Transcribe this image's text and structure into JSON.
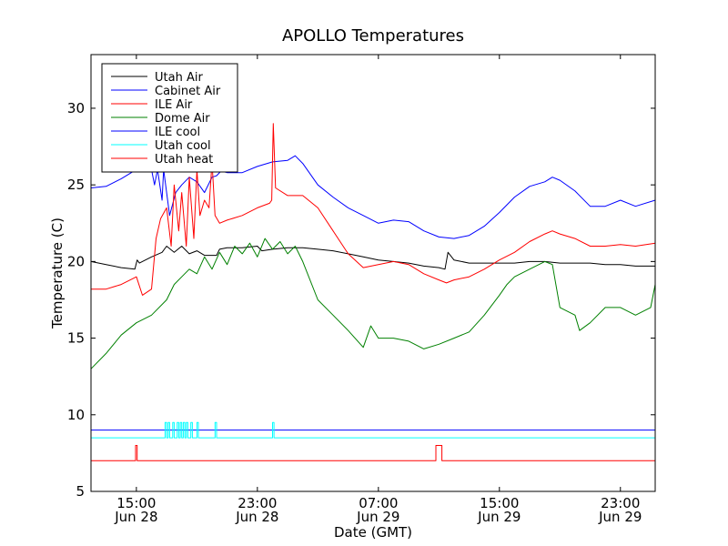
{
  "chart_data": {
    "type": "line",
    "title": "APOLLO Temperatures",
    "xlabel": "Date (GMT)",
    "ylabel": "Temperature (C)",
    "ylim": [
      5,
      33.5
    ],
    "xlim": [
      12,
      49.3
    ],
    "grid": false,
    "legend_position": "top-left",
    "x_unit": "hours since 00:00 Jun 28 GMT",
    "y_ticks": [
      5,
      10,
      15,
      20,
      25,
      30
    ],
    "x_ticks": [
      {
        "x": 15,
        "line1": "15:00",
        "line2": "Jun 28"
      },
      {
        "x": 23,
        "line1": "23:00",
        "line2": "Jun 28"
      },
      {
        "x": 31,
        "line1": "07:00",
        "line2": "Jun 29"
      },
      {
        "x": 39,
        "line1": "15:00",
        "line2": "Jun 29"
      },
      {
        "x": 47,
        "line1": "23:00",
        "line2": "Jun 29"
      }
    ],
    "series": [
      {
        "name": "Utah Air",
        "color": "#000000",
        "points": [
          [
            12,
            20.0
          ],
          [
            13,
            19.8
          ],
          [
            14,
            19.6
          ],
          [
            14.9,
            19.5
          ],
          [
            15.05,
            20.1
          ],
          [
            15.2,
            19.9
          ],
          [
            16,
            20.3
          ],
          [
            16.7,
            20.6
          ],
          [
            17,
            21.0
          ],
          [
            17.5,
            20.6
          ],
          [
            18,
            21.0
          ],
          [
            18.5,
            20.5
          ],
          [
            19,
            20.7
          ],
          [
            19.5,
            20.4
          ],
          [
            20.3,
            20.4
          ],
          [
            20.5,
            20.8
          ],
          [
            21,
            20.9
          ],
          [
            22,
            20.9
          ],
          [
            23,
            21.0
          ],
          [
            23.3,
            20.7
          ],
          [
            24,
            20.8
          ],
          [
            25,
            20.9
          ],
          [
            26,
            20.9
          ],
          [
            27,
            20.8
          ],
          [
            28,
            20.7
          ],
          [
            29,
            20.5
          ],
          [
            30,
            20.3
          ],
          [
            31,
            20.1
          ],
          [
            32,
            20.0
          ],
          [
            33,
            19.9
          ],
          [
            34,
            19.7
          ],
          [
            35,
            19.6
          ],
          [
            35.4,
            19.5
          ],
          [
            35.6,
            20.6
          ],
          [
            36,
            20.1
          ],
          [
            37,
            19.9
          ],
          [
            38,
            19.9
          ],
          [
            39,
            19.9
          ],
          [
            40,
            19.9
          ],
          [
            41,
            20.0
          ],
          [
            42,
            20.0
          ],
          [
            43,
            19.9
          ],
          [
            44,
            19.9
          ],
          [
            45,
            19.9
          ],
          [
            46,
            19.8
          ],
          [
            47,
            19.8
          ],
          [
            48,
            19.7
          ],
          [
            49.3,
            19.7
          ]
        ]
      },
      {
        "name": "Cabinet Air",
        "color": "#0000ff",
        "points": [
          [
            12,
            24.8
          ],
          [
            13,
            24.9
          ],
          [
            14,
            25.4
          ],
          [
            15,
            26.0
          ],
          [
            15.5,
            26.2
          ],
          [
            16,
            26.0
          ],
          [
            16.2,
            25.0
          ],
          [
            16.4,
            26.0
          ],
          [
            16.7,
            24.0
          ],
          [
            16.8,
            26.0
          ],
          [
            17.2,
            23.0
          ],
          [
            17.6,
            24.5
          ],
          [
            18,
            25.0
          ],
          [
            18.5,
            25.5
          ],
          [
            19,
            25.2
          ],
          [
            19.5,
            24.5
          ],
          [
            20,
            25.5
          ],
          [
            20.3,
            25.6
          ],
          [
            20.6,
            25.9
          ],
          [
            21,
            25.8
          ],
          [
            22,
            25.8
          ],
          [
            23,
            26.2
          ],
          [
            24,
            26.5
          ],
          [
            25,
            26.6
          ],
          [
            25.5,
            26.9
          ],
          [
            26,
            26.4
          ],
          [
            27,
            25.0
          ],
          [
            28,
            24.2
          ],
          [
            29,
            23.5
          ],
          [
            30,
            23.0
          ],
          [
            31,
            22.5
          ],
          [
            32,
            22.7
          ],
          [
            33,
            22.6
          ],
          [
            34,
            22.0
          ],
          [
            35,
            21.6
          ],
          [
            36,
            21.5
          ],
          [
            37,
            21.7
          ],
          [
            38,
            22.3
          ],
          [
            39,
            23.2
          ],
          [
            40,
            24.2
          ],
          [
            41,
            24.9
          ],
          [
            42,
            25.2
          ],
          [
            42.5,
            25.5
          ],
          [
            43,
            25.3
          ],
          [
            44,
            24.6
          ],
          [
            45,
            23.6
          ],
          [
            46,
            23.6
          ],
          [
            47,
            24.0
          ],
          [
            48,
            23.6
          ],
          [
            49.3,
            24.0
          ]
        ]
      },
      {
        "name": "ILE Air",
        "color": "#ff0000",
        "points": [
          [
            12,
            18.2
          ],
          [
            13,
            18.2
          ],
          [
            14,
            18.5
          ],
          [
            15,
            19.0
          ],
          [
            15.4,
            17.8
          ],
          [
            16,
            18.2
          ],
          [
            16.3,
            21.5
          ],
          [
            16.6,
            22.8
          ],
          [
            17,
            23.5
          ],
          [
            17.3,
            21.0
          ],
          [
            17.5,
            25.0
          ],
          [
            17.8,
            22.0
          ],
          [
            18,
            24.5
          ],
          [
            18.3,
            21.0
          ],
          [
            18.5,
            25.5
          ],
          [
            18.8,
            21.5
          ],
          [
            19,
            26.0
          ],
          [
            19.2,
            23.0
          ],
          [
            19.5,
            24.0
          ],
          [
            19.8,
            23.5
          ],
          [
            20,
            26.5
          ],
          [
            20.2,
            23.0
          ],
          [
            20.5,
            22.5
          ],
          [
            21,
            22.7
          ],
          [
            22,
            23.0
          ],
          [
            23,
            23.5
          ],
          [
            23.8,
            23.8
          ],
          [
            23.95,
            24.0
          ],
          [
            24.05,
            29.0
          ],
          [
            24.2,
            24.8
          ],
          [
            25,
            24.3
          ],
          [
            26,
            24.3
          ],
          [
            27,
            23.5
          ],
          [
            28,
            22.0
          ],
          [
            29,
            20.5
          ],
          [
            30,
            19.6
          ],
          [
            31,
            19.8
          ],
          [
            32,
            20.0
          ],
          [
            33,
            19.8
          ],
          [
            34,
            19.2
          ],
          [
            35,
            18.8
          ],
          [
            35.5,
            18.6
          ],
          [
            36,
            18.8
          ],
          [
            37,
            19.0
          ],
          [
            38,
            19.5
          ],
          [
            39,
            20.1
          ],
          [
            40,
            20.6
          ],
          [
            41,
            21.3
          ],
          [
            42,
            21.8
          ],
          [
            42.5,
            22.0
          ],
          [
            43,
            21.8
          ],
          [
            44,
            21.5
          ],
          [
            45,
            21.0
          ],
          [
            46,
            21.0
          ],
          [
            47,
            21.1
          ],
          [
            48,
            21.0
          ],
          [
            49.3,
            21.2
          ]
        ]
      },
      {
        "name": "Dome Air",
        "color": "#008000",
        "points": [
          [
            12,
            13.0
          ],
          [
            13,
            14.0
          ],
          [
            14,
            15.2
          ],
          [
            15,
            16.0
          ],
          [
            16,
            16.5
          ],
          [
            17,
            17.5
          ],
          [
            17.5,
            18.5
          ],
          [
            18,
            19.0
          ],
          [
            18.5,
            19.5
          ],
          [
            19,
            19.2
          ],
          [
            19.5,
            20.3
          ],
          [
            20,
            19.5
          ],
          [
            20.5,
            20.6
          ],
          [
            21,
            19.8
          ],
          [
            21.5,
            21.0
          ],
          [
            22,
            20.5
          ],
          [
            22.5,
            21.2
          ],
          [
            23,
            20.3
          ],
          [
            23.5,
            21.5
          ],
          [
            24,
            20.8
          ],
          [
            24.5,
            21.3
          ],
          [
            25,
            20.5
          ],
          [
            25.5,
            21.0
          ],
          [
            26,
            20.0
          ],
          [
            27,
            17.5
          ],
          [
            28,
            16.5
          ],
          [
            29,
            15.5
          ],
          [
            30,
            14.4
          ],
          [
            30.5,
            15.8
          ],
          [
            31,
            15.0
          ],
          [
            32,
            15.0
          ],
          [
            33,
            14.8
          ],
          [
            34,
            14.3
          ],
          [
            35,
            14.6
          ],
          [
            36,
            15.0
          ],
          [
            37,
            15.4
          ],
          [
            38,
            16.5
          ],
          [
            39,
            17.8
          ],
          [
            39.5,
            18.5
          ],
          [
            40,
            19.0
          ],
          [
            41,
            19.5
          ],
          [
            42,
            20.0
          ],
          [
            42.5,
            19.8
          ],
          [
            43,
            17.0
          ],
          [
            44,
            16.5
          ],
          [
            44.3,
            15.5
          ],
          [
            45,
            16.0
          ],
          [
            46,
            17.0
          ],
          [
            47,
            17.0
          ],
          [
            48,
            16.5
          ],
          [
            49,
            17.0
          ],
          [
            49.3,
            18.5
          ]
        ]
      },
      {
        "name": "ILE cool",
        "color": "#0000ff",
        "points": [
          [
            12,
            9.0
          ],
          [
            49.3,
            9.0
          ]
        ]
      },
      {
        "name": "Utah cool",
        "color": "#00ffff",
        "points": [
          [
            12,
            8.5
          ],
          [
            16.9,
            8.5
          ],
          [
            16.9,
            9.5
          ],
          [
            17.0,
            9.5
          ],
          [
            17.0,
            8.5
          ],
          [
            17.1,
            8.5
          ],
          [
            17.1,
            9.5
          ],
          [
            17.2,
            9.5
          ],
          [
            17.2,
            8.5
          ],
          [
            17.4,
            8.5
          ],
          [
            17.4,
            9.5
          ],
          [
            17.5,
            9.5
          ],
          [
            17.5,
            8.5
          ],
          [
            17.7,
            8.5
          ],
          [
            17.7,
            9.5
          ],
          [
            17.8,
            9.5
          ],
          [
            17.8,
            8.5
          ],
          [
            17.9,
            8.5
          ],
          [
            17.9,
            9.5
          ],
          [
            18.0,
            9.5
          ],
          [
            18.0,
            8.5
          ],
          [
            18.1,
            8.5
          ],
          [
            18.1,
            9.5
          ],
          [
            18.2,
            9.5
          ],
          [
            18.2,
            8.5
          ],
          [
            18.3,
            8.5
          ],
          [
            18.3,
            9.5
          ],
          [
            18.4,
            9.5
          ],
          [
            18.4,
            8.5
          ],
          [
            18.6,
            8.5
          ],
          [
            18.6,
            9.5
          ],
          [
            18.7,
            9.5
          ],
          [
            18.7,
            8.5
          ],
          [
            19.0,
            8.5
          ],
          [
            19.0,
            9.5
          ],
          [
            19.1,
            9.5
          ],
          [
            19.1,
            8.5
          ],
          [
            20.2,
            8.5
          ],
          [
            20.2,
            9.5
          ],
          [
            20.3,
            9.5
          ],
          [
            20.3,
            8.5
          ],
          [
            24.0,
            8.5
          ],
          [
            24.0,
            9.5
          ],
          [
            24.1,
            9.5
          ],
          [
            24.1,
            8.5
          ],
          [
            49.3,
            8.5
          ]
        ]
      },
      {
        "name": "Utah heat",
        "color": "#ff0000",
        "points": [
          [
            12,
            7.0
          ],
          [
            14.95,
            7.0
          ],
          [
            14.95,
            8.0
          ],
          [
            15.05,
            8.0
          ],
          [
            15.05,
            7.0
          ],
          [
            34.8,
            7.0
          ],
          [
            34.8,
            8.0
          ],
          [
            35.2,
            8.0
          ],
          [
            35.2,
            7.0
          ],
          [
            49.3,
            7.0
          ]
        ]
      }
    ]
  }
}
